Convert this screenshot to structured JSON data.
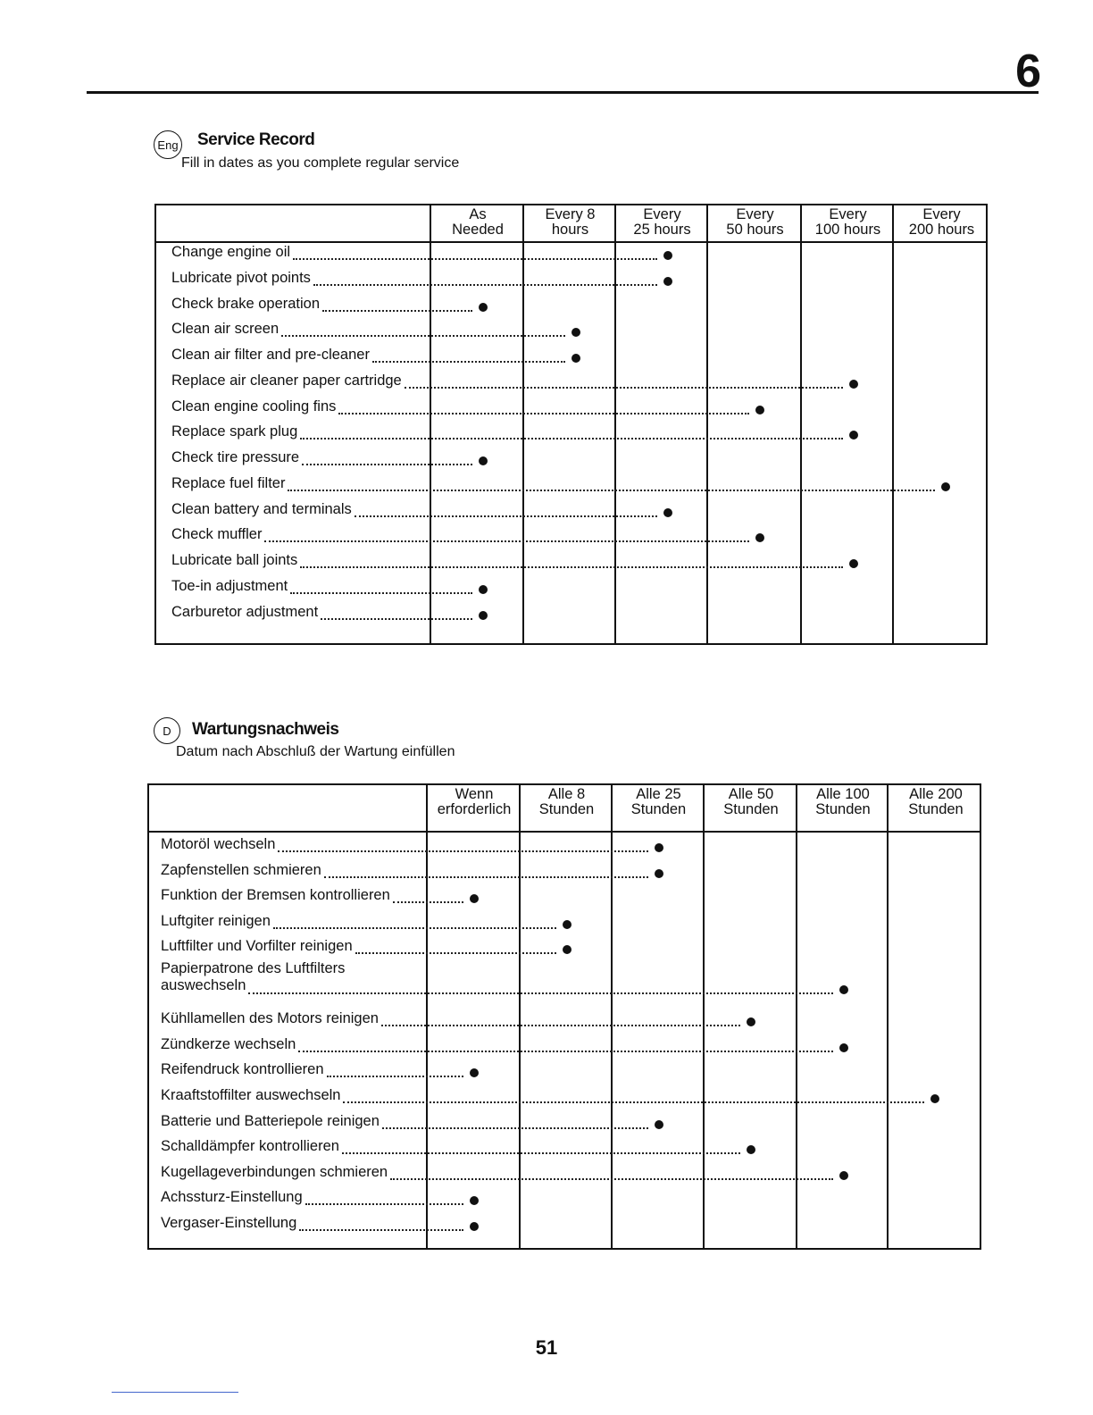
{
  "chapter": "6",
  "page_number": "51",
  "sections": [
    {
      "badge": "Eng",
      "title": "Service Record",
      "subtitle": "Fill in dates as you complete regular service",
      "columns": [
        "As\nNeeded",
        "Every 8\nhours",
        "Every\n25 hours",
        "Every\n50 hours",
        "Every\n100 hours",
        "Every\n200 hours"
      ],
      "rows": [
        {
          "label": "Change engine oil",
          "interval": 2
        },
        {
          "label": "Lubricate pivot points",
          "interval": 2
        },
        {
          "label": "Check brake operation",
          "interval": 0
        },
        {
          "label": "Clean air screen",
          "interval": 1
        },
        {
          "label": "Clean air filter and pre-cleaner",
          "interval": 1
        },
        {
          "label": "Replace air cleaner paper cartridge",
          "interval": 4
        },
        {
          "label": "Clean engine cooling fins",
          "interval": 3
        },
        {
          "label": "Replace spark plug",
          "interval": 4
        },
        {
          "label": "Check tire pressure",
          "interval": 0
        },
        {
          "label": "Replace fuel filter",
          "interval": 5
        },
        {
          "label": "Clean battery and terminals",
          "interval": 2
        },
        {
          "label": "Check muffler",
          "interval": 3
        },
        {
          "label": "Lubricate ball joints",
          "interval": 4
        },
        {
          "label": "Toe-in adjustment",
          "interval": 0
        },
        {
          "label": "Carburetor adjustment",
          "interval": 0
        }
      ]
    },
    {
      "badge": "D",
      "title": "Wartungsnachweis",
      "subtitle": "Datum nach Abschluß der Wartung einfüllen",
      "columns": [
        "Wenn\nerforderlich",
        "Alle 8\nStunden",
        "Alle 25\nStunden",
        "Alle 50\nStunden",
        "Alle 100\nStunden",
        "Alle 200\nStunden"
      ],
      "rows": [
        {
          "label": "Motoröl wechseln",
          "interval": 2
        },
        {
          "label": "Zapfenstellen schmieren",
          "interval": 2
        },
        {
          "label": "Funktion der Bremsen kontrollieren",
          "interval": 0
        },
        {
          "label": "Luftgiter reinigen",
          "interval": 1
        },
        {
          "label": "Luftfilter und Vorfilter reinigen",
          "interval": 1
        },
        {
          "label": "Papierpatrone des Luftfilters\n    auswechseln",
          "interval": 4
        },
        {
          "label": "Kühllamellen des Motors reinigen",
          "interval": 3
        },
        {
          "label": "Zündkerze wechseln",
          "interval": 4
        },
        {
          "label": "Reifendruck kontrollieren",
          "interval": 0
        },
        {
          "label": "Kraaftstoffilter auswechseln",
          "interval": 5
        },
        {
          "label": "Batterie und Batteriepole reinigen",
          "interval": 2
        },
        {
          "label": "Schalldämpfer kontrollieren",
          "interval": 3
        },
        {
          "label": "Kugellageverbindungen schmieren",
          "interval": 4
        },
        {
          "label": "Achssturz-Einstellung",
          "interval": 0
        },
        {
          "label": "Vergaser-Einstellung",
          "interval": 0
        }
      ]
    }
  ]
}
